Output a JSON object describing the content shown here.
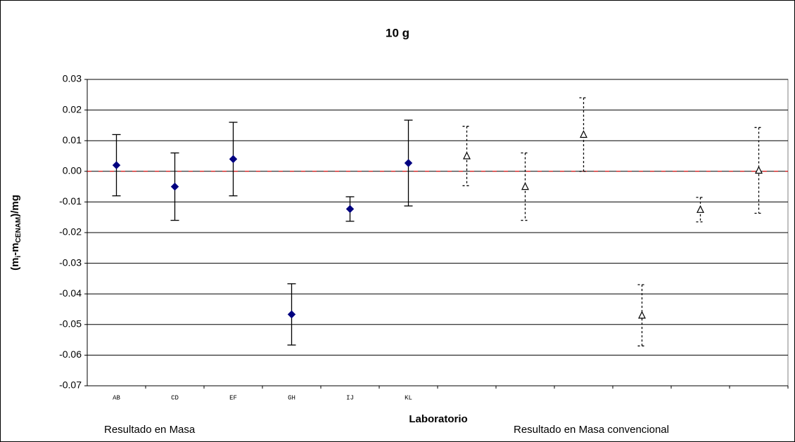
{
  "chart_data": {
    "type": "errorbar",
    "title": "10 g",
    "x_label": "Laboratorio",
    "y_label": [
      "(m",
      "i",
      "-m",
      "CENAM",
      ")/mg"
    ],
    "categories": [
      "AB",
      "CD",
      "EF",
      "GH",
      "IJ",
      "KL",
      null,
      null,
      null,
      null,
      null,
      null
    ],
    "series": [
      {
        "name": "Resultado en Masa",
        "color": "#000080",
        "marker": "diamond",
        "line_style": "solid",
        "values": [
          0.002,
          -0.005,
          0.004,
          -0.0467,
          -0.0123,
          0.0027,
          null,
          null,
          null,
          null,
          null,
          null
        ],
        "errors": [
          0.01,
          0.011,
          0.012,
          0.01,
          0.004,
          0.014,
          null,
          null,
          null,
          null,
          null,
          null
        ]
      },
      {
        "name": "Resultado en Masa convencional",
        "color": "#000000",
        "marker": "triangle",
        "line_style": "dotted",
        "values": [
          null,
          null,
          null,
          null,
          null,
          null,
          0.005,
          -0.005,
          0.012,
          -0.047,
          -0.0125,
          0.0003
        ],
        "errors": [
          null,
          null,
          null,
          null,
          null,
          null,
          0.0097,
          0.011,
          0.012,
          0.01,
          0.004,
          0.014
        ]
      }
    ],
    "reference_line": {
      "value": 0,
      "color": "#ff0000"
    },
    "ylim": [
      -0.07,
      0.03
    ],
    "yticks": [
      -0.07,
      -0.06,
      -0.05,
      -0.04,
      -0.03,
      -0.02,
      -0.01,
      {
        "value": 0,
        "label": "0.00"
      },
      0.01,
      0.02,
      0.03
    ],
    "grid": true
  }
}
